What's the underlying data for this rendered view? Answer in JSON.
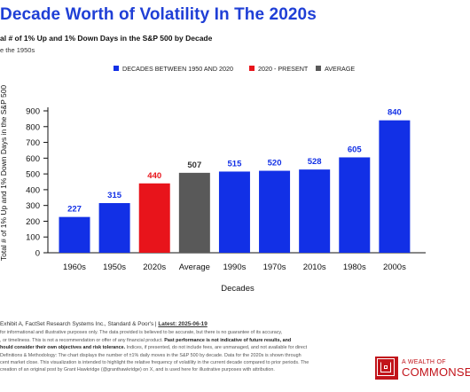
{
  "header": {
    "title": "Decade Worth of Volatility In The 2020s",
    "subtitle": "al # of 1% Up and 1% Down Days in the S&P 500 by Decade",
    "note": "e the 1950s"
  },
  "chart_data": {
    "type": "bar",
    "title": "",
    "xlabel": "Decades",
    "ylabel": "Total # of 1% Up and 1% Down Days in the S&P 500",
    "ylim": [
      0,
      900
    ],
    "yticks": [
      0,
      100,
      200,
      300,
      400,
      500,
      600,
      700,
      800,
      900
    ],
    "grid": false,
    "legend_position": "top",
    "categories": [
      "1960s",
      "1950s",
      "2020s",
      "Average",
      "1990s",
      "1970s",
      "2010s",
      "1980s",
      "2000s"
    ],
    "values": [
      227,
      315,
      440,
      507,
      515,
      520,
      528,
      605,
      840
    ],
    "groups": [
      "decades",
      "decades",
      "present",
      "average",
      "decades",
      "decades",
      "decades",
      "decades",
      "decades"
    ],
    "legend": [
      {
        "key": "decades",
        "label": "DECADES BETWEEN 1950 AND 2020",
        "color": "#1230e6"
      },
      {
        "key": "present",
        "label": "2020 - PRESENT",
        "color": "#e8141b"
      },
      {
        "key": "average",
        "label": "AVERAGE",
        "color": "#595959"
      }
    ],
    "label_colors": {
      "decades": "#1230e6",
      "present": "#e8141b",
      "average": "#333333"
    }
  },
  "footer": {
    "source_prefix": "Exhibit A, FactSet Research Systems Inc., Standard & Poor's | ",
    "source_latest": "Latest: 2025-06-19",
    "disclaimer_1": "for informational and illustrative purposes only. The data provided is believed to be accurate, but there is no guarantee of its accuracy,",
    "disclaimer_2a": ", or timeliness. This is not a recommendation or offer of any financial product. ",
    "disclaimer_2b": "Past performance is not indicative of future results, and",
    "disclaimer_3": "hould consider their own objectives and risk tolerance.",
    "disclaimer_3b": " Indices, if presented, do not include fees, are unmanaged, and not available for direct",
    "disclaimer_4": "Definitions & Methodology: The chart displays the number of ±1% daily moves in the S&P 500 by decade. Data for the 2020s is shown through",
    "disclaimer_5": "cent market close. This visualization is intended to highlight the relative frequency of volatility in the current decade compared to prior periods. The",
    "disclaimer_6": "creation of an original post by Grant Hawkridge (@granthawkridge) on X, and is used here for illustrative purposes with attribution."
  },
  "logo": {
    "line1": "A WEALTH OF",
    "line2": "COMMONSEN"
  }
}
